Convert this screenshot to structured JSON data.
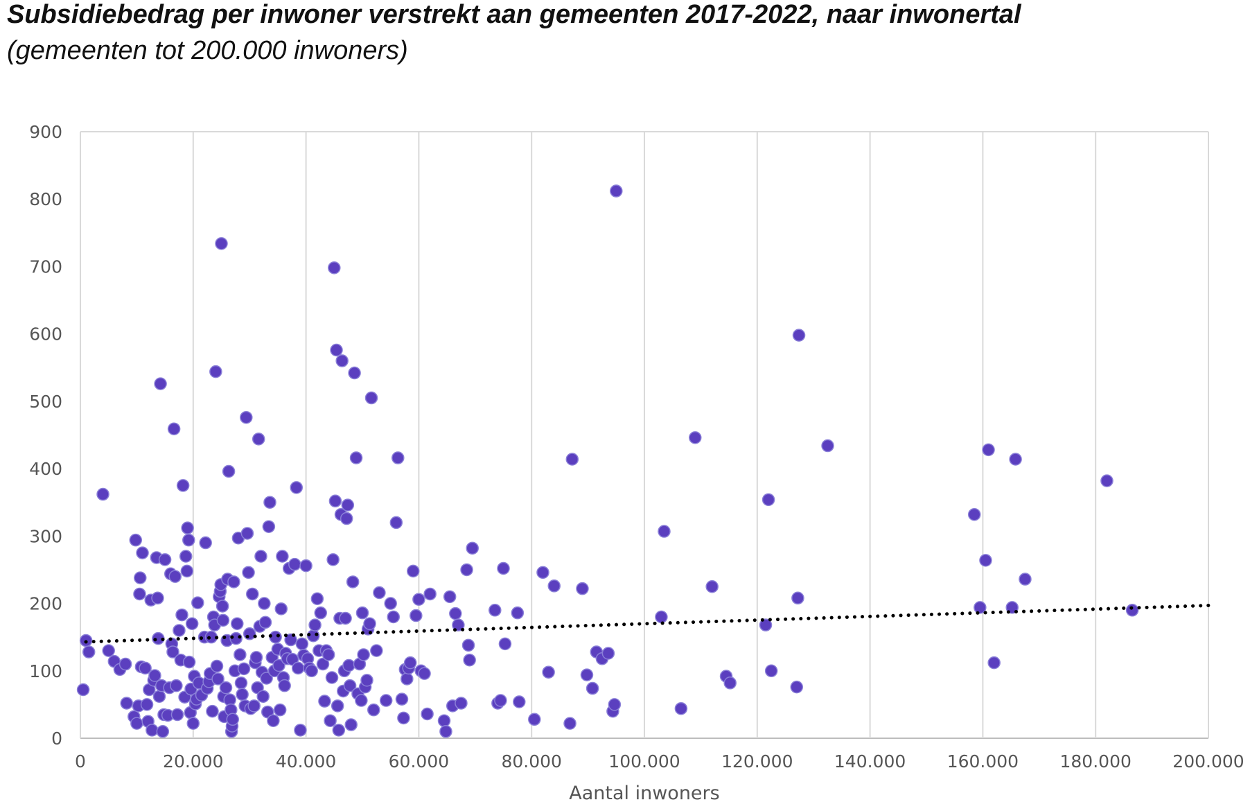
{
  "title": "Subsidiebedrag per inwoner verstrekt aan gemeenten 2017-2022, naar inwonertal",
  "subtitle": "(gemeenten tot 200.000 inwoners)",
  "chart_data": {
    "type": "scatter",
    "title": "Subsidiebedrag per inwoner verstrekt aan gemeenten 2017-2022, naar inwonertal",
    "subtitle": "(gemeenten tot 200.000 inwoners)",
    "xlabel": "Aantal inwoners",
    "ylabel": "",
    "xlim": [
      0,
      200000
    ],
    "ylim": [
      0,
      900
    ],
    "x_ticks": [
      "0",
      "20.000",
      "40.000",
      "60.000",
      "80.000",
      "100.000",
      "120.000",
      "140.000",
      "160.000",
      "180.000",
      "200.000"
    ],
    "y_ticks": [
      "0",
      "100",
      "200",
      "300",
      "400",
      "500",
      "600",
      "700",
      "800",
      "900"
    ],
    "grid": true,
    "marker_color": "#5b3fbf",
    "marker_edge_color": "#8a7fd8",
    "trendline": {
      "style": "dotted",
      "color": "#000000",
      "start": [
        0,
        143
      ],
      "end": [
        200000,
        197
      ]
    },
    "points": [
      [
        500,
        72
      ],
      [
        1000,
        145
      ],
      [
        1500,
        128
      ],
      [
        4000,
        362
      ],
      [
        5000,
        130
      ],
      [
        6000,
        114
      ],
      [
        7000,
        102
      ],
      [
        8000,
        110
      ],
      [
        8200,
        52
      ],
      [
        9500,
        32
      ],
      [
        9800,
        294
      ],
      [
        10000,
        22
      ],
      [
        10300,
        48
      ],
      [
        10500,
        214
      ],
      [
        10600,
        238
      ],
      [
        10800,
        106
      ],
      [
        11000,
        275
      ],
      [
        11500,
        104
      ],
      [
        11800,
        50
      ],
      [
        12000,
        25
      ],
      [
        12200,
        72
      ],
      [
        12500,
        205
      ],
      [
        12700,
        12
      ],
      [
        13000,
        86
      ],
      [
        13200,
        93
      ],
      [
        13500,
        268
      ],
      [
        13700,
        208
      ],
      [
        13800,
        148
      ],
      [
        14000,
        62
      ],
      [
        14200,
        526
      ],
      [
        14400,
        78
      ],
      [
        14600,
        10
      ],
      [
        14800,
        35
      ],
      [
        15000,
        265
      ],
      [
        15500,
        34
      ],
      [
        15800,
        75
      ],
      [
        16000,
        244
      ],
      [
        16200,
        140
      ],
      [
        16400,
        128
      ],
      [
        16600,
        459
      ],
      [
        16800,
        240
      ],
      [
        17000,
        78
      ],
      [
        17200,
        35
      ],
      [
        17500,
        160
      ],
      [
        17800,
        116
      ],
      [
        18000,
        183
      ],
      [
        18200,
        375
      ],
      [
        18500,
        61
      ],
      [
        18700,
        270
      ],
      [
        18900,
        248
      ],
      [
        19000,
        312
      ],
      [
        19200,
        294
      ],
      [
        19300,
        113
      ],
      [
        19500,
        38
      ],
      [
        19600,
        73
      ],
      [
        19800,
        170
      ],
      [
        20000,
        22
      ],
      [
        20200,
        92
      ],
      [
        20400,
        51
      ],
      [
        20600,
        58
      ],
      [
        20800,
        201
      ],
      [
        21000,
        82
      ],
      [
        21500,
        64
      ],
      [
        22000,
        150
      ],
      [
        22200,
        290
      ],
      [
        22500,
        74
      ],
      [
        22800,
        84
      ],
      [
        23000,
        96
      ],
      [
        23200,
        150
      ],
      [
        23400,
        40
      ],
      [
        23600,
        180
      ],
      [
        23800,
        168
      ],
      [
        24000,
        544
      ],
      [
        24200,
        107
      ],
      [
        24400,
        88
      ],
      [
        24600,
        210
      ],
      [
        24800,
        218
      ],
      [
        24900,
        228
      ],
      [
        25000,
        734
      ],
      [
        25200,
        196
      ],
      [
        25300,
        175
      ],
      [
        25400,
        62
      ],
      [
        25500,
        32
      ],
      [
        25800,
        75
      ],
      [
        26000,
        145
      ],
      [
        26100,
        236
      ],
      [
        26300,
        396
      ],
      [
        26500,
        57
      ],
      [
        26700,
        42
      ],
      [
        26800,
        10
      ],
      [
        26900,
        18
      ],
      [
        27000,
        28
      ],
      [
        27200,
        232
      ],
      [
        27400,
        100
      ],
      [
        27600,
        148
      ],
      [
        27800,
        170
      ],
      [
        28000,
        297
      ],
      [
        28300,
        124
      ],
      [
        28500,
        82
      ],
      [
        28700,
        65
      ],
      [
        29000,
        103
      ],
      [
        29200,
        48
      ],
      [
        29400,
        476
      ],
      [
        29600,
        304
      ],
      [
        29800,
        246
      ],
      [
        30000,
        155
      ],
      [
        30200,
        44
      ],
      [
        30500,
        214
      ],
      [
        30800,
        48
      ],
      [
        31000,
        112
      ],
      [
        31200,
        120
      ],
      [
        31400,
        75
      ],
      [
        31600,
        444
      ],
      [
        31800,
        166
      ],
      [
        32000,
        270
      ],
      [
        32200,
        98
      ],
      [
        32400,
        62
      ],
      [
        32600,
        200
      ],
      [
        32800,
        172
      ],
      [
        33000,
        89
      ],
      [
        33200,
        39
      ],
      [
        33400,
        314
      ],
      [
        33600,
        350
      ],
      [
        34000,
        120
      ],
      [
        34200,
        26
      ],
      [
        34400,
        100
      ],
      [
        34600,
        150
      ],
      [
        35000,
        132
      ],
      [
        35200,
        108
      ],
      [
        35400,
        42
      ],
      [
        35600,
        192
      ],
      [
        35800,
        270
      ],
      [
        36000,
        90
      ],
      [
        36200,
        78
      ],
      [
        36400,
        126
      ],
      [
        36700,
        118
      ],
      [
        37000,
        252
      ],
      [
        37300,
        146
      ],
      [
        37600,
        117
      ],
      [
        38000,
        258
      ],
      [
        38300,
        372
      ],
      [
        38600,
        104
      ],
      [
        39000,
        12
      ],
      [
        39300,
        140
      ],
      [
        39600,
        123
      ],
      [
        40000,
        256
      ],
      [
        40300,
        118
      ],
      [
        40600,
        104
      ],
      [
        41000,
        100
      ],
      [
        41300,
        152
      ],
      [
        41600,
        168
      ],
      [
        42000,
        207
      ],
      [
        42300,
        130
      ],
      [
        42600,
        186
      ],
      [
        43000,
        110
      ],
      [
        43300,
        55
      ],
      [
        43600,
        130
      ],
      [
        44000,
        124
      ],
      [
        44300,
        26
      ],
      [
        44600,
        90
      ],
      [
        44800,
        265
      ],
      [
        45000,
        698
      ],
      [
        45200,
        352
      ],
      [
        45400,
        576
      ],
      [
        45600,
        48
      ],
      [
        45800,
        12
      ],
      [
        46000,
        178
      ],
      [
        46200,
        332
      ],
      [
        46400,
        560
      ],
      [
        46600,
        70
      ],
      [
        46800,
        100
      ],
      [
        47000,
        178
      ],
      [
        47200,
        326
      ],
      [
        47400,
        346
      ],
      [
        47600,
        108
      ],
      [
        47800,
        78
      ],
      [
        48000,
        20
      ],
      [
        48300,
        232
      ],
      [
        48600,
        542
      ],
      [
        48900,
        416
      ],
      [
        49200,
        66
      ],
      [
        49500,
        110
      ],
      [
        49800,
        56
      ],
      [
        50000,
        186
      ],
      [
        50200,
        124
      ],
      [
        50500,
        76
      ],
      [
        50800,
        86
      ],
      [
        51000,
        162
      ],
      [
        51300,
        170
      ],
      [
        51600,
        505
      ],
      [
        52000,
        42
      ],
      [
        52500,
        130
      ],
      [
        53000,
        216
      ],
      [
        54200,
        56
      ],
      [
        55000,
        200
      ],
      [
        55500,
        180
      ],
      [
        56000,
        320
      ],
      [
        56300,
        416
      ],
      [
        57000,
        58
      ],
      [
        57300,
        30
      ],
      [
        57600,
        102
      ],
      [
        57900,
        88
      ],
      [
        58200,
        104
      ],
      [
        58500,
        112
      ],
      [
        59000,
        248
      ],
      [
        59500,
        182
      ],
      [
        60000,
        206
      ],
      [
        60400,
        100
      ],
      [
        61000,
        96
      ],
      [
        61500,
        36
      ],
      [
        62000,
        214
      ],
      [
        64500,
        26
      ],
      [
        64800,
        10
      ],
      [
        65500,
        210
      ],
      [
        66000,
        48
      ],
      [
        66500,
        185
      ],
      [
        67000,
        168
      ],
      [
        67500,
        52
      ],
      [
        68500,
        250
      ],
      [
        68800,
        138
      ],
      [
        69000,
        116
      ],
      [
        69500,
        282
      ],
      [
        73500,
        190
      ],
      [
        74000,
        52
      ],
      [
        74500,
        56
      ],
      [
        75000,
        252
      ],
      [
        75300,
        140
      ],
      [
        77500,
        186
      ],
      [
        77800,
        54
      ],
      [
        80500,
        28
      ],
      [
        82000,
        246
      ],
      [
        83000,
        98
      ],
      [
        84000,
        226
      ],
      [
        86800,
        22
      ],
      [
        87200,
        414
      ],
      [
        89000,
        222
      ],
      [
        89800,
        94
      ],
      [
        90800,
        74
      ],
      [
        91500,
        128
      ],
      [
        92500,
        118
      ],
      [
        93600,
        126
      ],
      [
        94400,
        40
      ],
      [
        94700,
        50
      ],
      [
        95000,
        812
      ],
      [
        103000,
        180
      ],
      [
        103500,
        307
      ],
      [
        106500,
        44
      ],
      [
        109000,
        446
      ],
      [
        112000,
        225
      ],
      [
        114500,
        92
      ],
      [
        115200,
        82
      ],
      [
        121500,
        168
      ],
      [
        122000,
        354
      ],
      [
        122500,
        100
      ],
      [
        127000,
        76
      ],
      [
        127200,
        208
      ],
      [
        127400,
        598
      ],
      [
        132500,
        434
      ],
      [
        158500,
        332
      ],
      [
        159500,
        194
      ],
      [
        160500,
        264
      ],
      [
        161000,
        428
      ],
      [
        162000,
        112
      ],
      [
        165200,
        194
      ],
      [
        165800,
        414
      ],
      [
        167500,
        236
      ],
      [
        182000,
        382
      ],
      [
        186500,
        190
      ]
    ]
  }
}
